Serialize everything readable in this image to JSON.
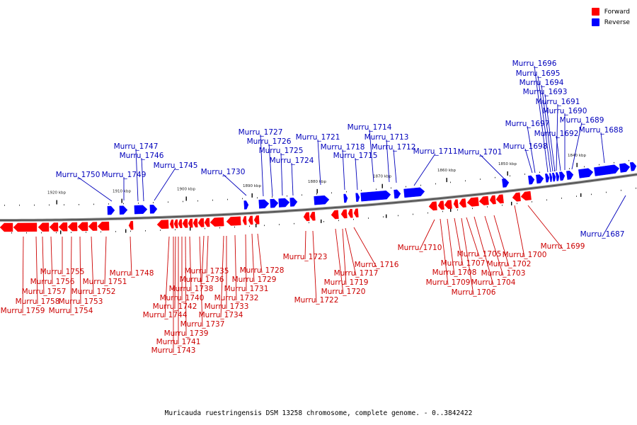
{
  "caption": "Muricauda ruestringensis DSM 13258 chromosome, complete genome. - 0..3842422",
  "legend": [
    {
      "label": "Forward",
      "color": "#ff0000"
    },
    {
      "label": "Reverse",
      "color": "#0000ff"
    }
  ],
  "colors": {
    "forward": "#ff0000",
    "reverse": "#0000ff",
    "forward_label": "#cc0000",
    "reverse_label": "#0000bb"
  },
  "ticks": [
    "1920 kbp",
    "1910 kbp",
    "1900 kbp",
    "1890 kbp",
    "1880 kbp",
    "1870 kbp",
    "1860 kbp",
    "1850 kbp",
    "1840 kbp"
  ],
  "reverse_genes": [
    "Murru_1750",
    "Murru_1749",
    "Murru_1747",
    "Murru_1746",
    "Murru_1745",
    "Murru_1730",
    "Murru_1727",
    "Murru_1726",
    "Murru_1725",
    "Murru_1724",
    "Murru_1721",
    "Murru_1718",
    "Murru_1715",
    "Murru_1714",
    "Murru_1713",
    "Murru_1712",
    "Murru_1711",
    "Murru_1701",
    "Murru_1698",
    "Murru_1697",
    "Murru_1696",
    "Murru_1695",
    "Murru_1694",
    "Murru_1693",
    "Murru_1692",
    "Murru_1691",
    "Murru_1690",
    "Murru_1689",
    "Murru_1688",
    "Murru_1687"
  ],
  "forward_genes": [
    "Murru_1759",
    "Murru_1758",
    "Murru_1757",
    "Murru_1756",
    "Murru_1755",
    "Murru_1754",
    "Murru_1753",
    "Murru_1752",
    "Murru_1751",
    "Murru_1748",
    "Murru_1744",
    "Murru_1743",
    "Murru_1742",
    "Murru_1741",
    "Murru_1740",
    "Murru_1739",
    "Murru_1738",
    "Murru_1737",
    "Murru_1736",
    "Murru_1735",
    "Murru_1734",
    "Murru_1733",
    "Murru_1732",
    "Murru_1731",
    "Murru_1729",
    "Murru_1728",
    "Murru_1723",
    "Murru_1722",
    "Murru_1720",
    "Murru_1719",
    "Murru_1717",
    "Murru_1716",
    "Murru_1710",
    "Murru_1709",
    "Murru_1708",
    "Murru_1707",
    "Murru_1706",
    "Murru_1705",
    "Murru_1704",
    "Murru_1703",
    "Murru_1702",
    "Murru_1700",
    "Murru_1699"
  ]
}
